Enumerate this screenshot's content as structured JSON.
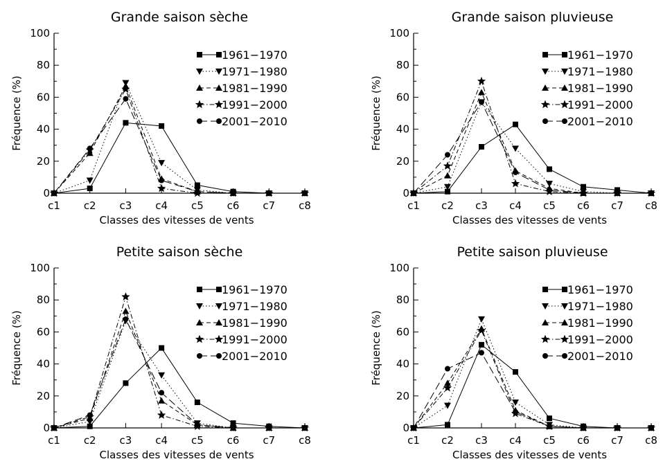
{
  "chart_data": [
    {
      "type": "line",
      "title": "Grande saison sèche",
      "xlabel": "Classes des vitesses de vents",
      "ylabel": "Fréquence (%)",
      "categories": [
        "c1",
        "c2",
        "c3",
        "c4",
        "c5",
        "c6",
        "c7",
        "c8"
      ],
      "yticks": [
        "0",
        "20",
        "40",
        "60",
        "80",
        "100"
      ],
      "ylim": [
        0,
        100
      ],
      "legend_position": "top-right",
      "series": [
        {
          "name": "1961−1970",
          "marker": "square",
          "dash": "solid",
          "values": [
            0,
            3,
            44,
            42,
            5,
            1,
            0,
            0
          ]
        },
        {
          "name": "1971−1980",
          "marker": "triangle-down",
          "dash": "dotted",
          "values": [
            0,
            8,
            69,
            19,
            2,
            0,
            0,
            0
          ]
        },
        {
          "name": "1981−1990",
          "marker": "triangle-up",
          "dash": "dashed",
          "values": [
            0,
            25,
            67,
            9,
            1,
            0,
            0,
            0
          ]
        },
        {
          "name": "1991−2000",
          "marker": "star",
          "dash": "dashdot",
          "values": [
            0,
            27,
            65,
            3,
            0,
            0,
            0,
            0
          ]
        },
        {
          "name": "2001−2010",
          "marker": "circle",
          "dash": "longdash",
          "values": [
            0,
            28,
            59,
            8,
            1,
            0,
            0,
            0
          ]
        }
      ]
    },
    {
      "type": "line",
      "title": "Grande saison pluvieuse",
      "xlabel": "Classes des vitesses de vents",
      "ylabel": "Fréquence (%)",
      "categories": [
        "c1",
        "c2",
        "c3",
        "c4",
        "c5",
        "c6",
        "c7",
        "c8"
      ],
      "yticks": [
        "0",
        "20",
        "40",
        "60",
        "80",
        "100"
      ],
      "ylim": [
        0,
        100
      ],
      "legend_position": "top-right",
      "series": [
        {
          "name": "1961−1970",
          "marker": "square",
          "dash": "solid",
          "values": [
            0,
            1,
            29,
            43,
            15,
            4,
            2,
            0
          ]
        },
        {
          "name": "1971−1980",
          "marker": "triangle-down",
          "dash": "dotted",
          "values": [
            0,
            4,
            57,
            28,
            6,
            1,
            0,
            0
          ]
        },
        {
          "name": "1981−1990",
          "marker": "triangle-up",
          "dash": "dashed",
          "values": [
            0,
            11,
            63,
            14,
            3,
            0,
            0,
            0
          ]
        },
        {
          "name": "1991−2000",
          "marker": "star",
          "dash": "dashdot",
          "values": [
            0,
            17,
            70,
            6,
            1,
            0,
            0,
            0
          ]
        },
        {
          "name": "2001−2010",
          "marker": "circle",
          "dash": "longdash",
          "values": [
            0,
            24,
            57,
            13,
            2,
            0,
            0,
            0
          ]
        }
      ]
    },
    {
      "type": "line",
      "title": "Petite saison sèche",
      "xlabel": "Classes des vitesses de vents",
      "ylabel": "Fréquence (%)",
      "categories": [
        "c1",
        "c2",
        "c3",
        "c4",
        "c5",
        "c6",
        "c7",
        "c8"
      ],
      "yticks": [
        "0",
        "20",
        "40",
        "60",
        "80",
        "100"
      ],
      "ylim": [
        0,
        100
      ],
      "legend_position": "top-right",
      "series": [
        {
          "name": "1961−1970",
          "marker": "square",
          "dash": "solid",
          "values": [
            0,
            1,
            28,
            50,
            16,
            3,
            1,
            0
          ]
        },
        {
          "name": "1971−1980",
          "marker": "triangle-down",
          "dash": "dotted",
          "values": [
            0,
            4,
            67,
            33,
            3,
            0,
            0,
            0
          ]
        },
        {
          "name": "1981−1990",
          "marker": "triangle-up",
          "dash": "dashed",
          "values": [
            0,
            6,
            73,
            17,
            2,
            0,
            0,
            0
          ]
        },
        {
          "name": "1991−2000",
          "marker": "star",
          "dash": "dashdot",
          "values": [
            0,
            7,
            82,
            8,
            1,
            0,
            0,
            0
          ]
        },
        {
          "name": "2001−2010",
          "marker": "circle",
          "dash": "longdash",
          "values": [
            0,
            8,
            68,
            22,
            2,
            0,
            0,
            0
          ]
        }
      ]
    },
    {
      "type": "line",
      "title": "Petite saison pluvieuse",
      "xlabel": "Classes des vitesses de vents",
      "ylabel": "Fréquence (%)",
      "categories": [
        "c1",
        "c2",
        "c3",
        "c4",
        "c5",
        "c6",
        "c7",
        "c8"
      ],
      "yticks": [
        "0",
        "20",
        "40",
        "60",
        "80",
        "100"
      ],
      "ylim": [
        0,
        100
      ],
      "legend_position": "top-right",
      "series": [
        {
          "name": "1961−1970",
          "marker": "square",
          "dash": "solid",
          "values": [
            0,
            2,
            52,
            35,
            6,
            1,
            0,
            0
          ]
        },
        {
          "name": "1971−1980",
          "marker": "triangle-down",
          "dash": "dotted",
          "values": [
            0,
            14,
            68,
            16,
            2,
            0,
            0,
            0
          ]
        },
        {
          "name": "1981−1990",
          "marker": "triangle-up",
          "dash": "dashed",
          "values": [
            0,
            28,
            62,
            11,
            1,
            0,
            0,
            0
          ]
        },
        {
          "name": "1991−2000",
          "marker": "star",
          "dash": "dashdot",
          "values": [
            0,
            25,
            61,
            9,
            1,
            0,
            0,
            0
          ]
        },
        {
          "name": "2001−2010",
          "marker": "circle",
          "dash": "longdash",
          "values": [
            0,
            37,
            47,
            10,
            1,
            0,
            0,
            0
          ]
        }
      ]
    }
  ]
}
